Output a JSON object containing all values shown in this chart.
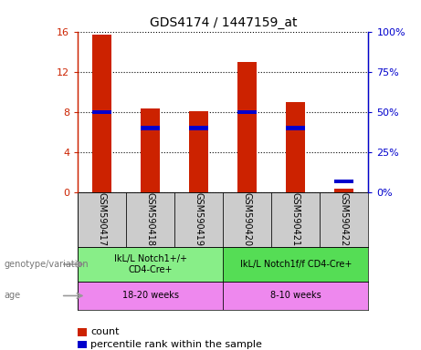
{
  "title": "GDS4174 / 1447159_at",
  "samples": [
    "GSM590417",
    "GSM590418",
    "GSM590419",
    "GSM590420",
    "GSM590421",
    "GSM590422"
  ],
  "count_values": [
    15.7,
    8.35,
    8.1,
    13.0,
    9.0,
    0.35
  ],
  "percentile_values": [
    50,
    40,
    40,
    50,
    40,
    7
  ],
  "left_ylim": [
    0,
    16
  ],
  "right_ylim": [
    0,
    100
  ],
  "left_yticks": [
    0,
    4,
    8,
    12,
    16
  ],
  "right_yticks": [
    0,
    25,
    50,
    75,
    100
  ],
  "left_yticklabels": [
    "0",
    "4",
    "8",
    "12",
    "16"
  ],
  "right_yticklabels": [
    "0%",
    "25%",
    "50%",
    "75%",
    "100%"
  ],
  "bar_width": 0.4,
  "count_color": "#cc2200",
  "percentile_color": "#0000cc",
  "genotype_groups": [
    {
      "label": "IkL/L Notch1+/+\nCD4-Cre+",
      "start": 0,
      "end": 3,
      "color": "#88ee88"
    },
    {
      "label": "IkL/L Notch1f/f CD4-Cre+",
      "start": 3,
      "end": 6,
      "color": "#55dd55"
    }
  ],
  "age_groups": [
    {
      "label": "18-20 weeks",
      "start": 0,
      "end": 3,
      "color": "#ee88ee"
    },
    {
      "label": "8-10 weeks",
      "start": 3,
      "end": 6,
      "color": "#ee88ee"
    }
  ],
  "sample_bg_color": "#cccccc",
  "genotype_label": "genotype/variation",
  "age_label": "age",
  "legend_count_label": "count",
  "legend_percentile_label": "percentile rank within the sample",
  "fig_bg_color": "#ffffff"
}
